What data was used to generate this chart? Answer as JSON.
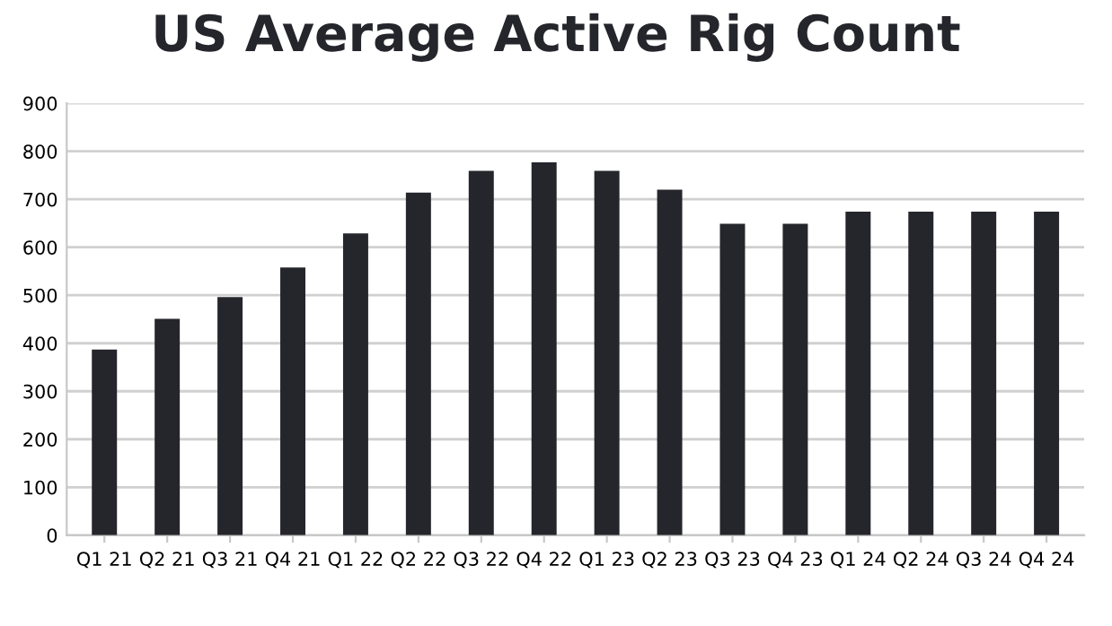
{
  "chart_data": {
    "type": "bar",
    "title": "US Average Active Rig Count",
    "categories": [
      "Q1 21",
      "Q2 21",
      "Q3 21",
      "Q4 21",
      "Q1 22",
      "Q2 22",
      "Q3 22",
      "Q4 22",
      "Q1 23",
      "Q2 23",
      "Q3 23",
      "Q4 23",
      "Q1 24",
      "Q2 24",
      "Q3 24",
      "Q4 24"
    ],
    "values": [
      387,
      451,
      496,
      558,
      629,
      714,
      759,
      777,
      759,
      720,
      649,
      649,
      674,
      674,
      674,
      674
    ],
    "color": "#25252c",
    "ylim": [
      0,
      900
    ],
    "yticks": [
      0,
      100,
      200,
      300,
      400,
      500,
      600,
      700,
      800,
      900
    ],
    "grid": "y"
  }
}
